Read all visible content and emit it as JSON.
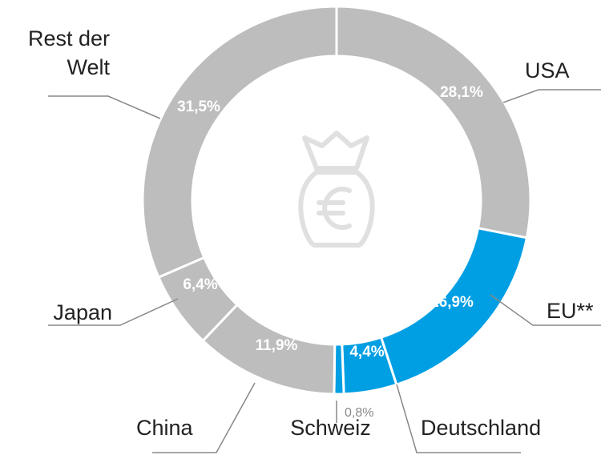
{
  "chart_data": {
    "type": "donut",
    "categories": [
      "USA",
      "EU**",
      "Deutschland",
      "Schweiz",
      "China",
      "Japan",
      "Rest der Welt"
    ],
    "values": [
      28.1,
      16.9,
      4.4,
      0.8,
      11.9,
      6.4,
      31.5
    ],
    "value_labels": [
      "28,1%",
      "16,9%",
      "4,4%",
      "0,8%",
      "11,9%",
      "6,4%",
      "31,5%"
    ],
    "colors": [
      "#bdbdbd",
      "#009fe3",
      "#009fe3",
      "#009fe3",
      "#bdbdbd",
      "#bdbdbd",
      "#bdbdbd"
    ]
  }
}
